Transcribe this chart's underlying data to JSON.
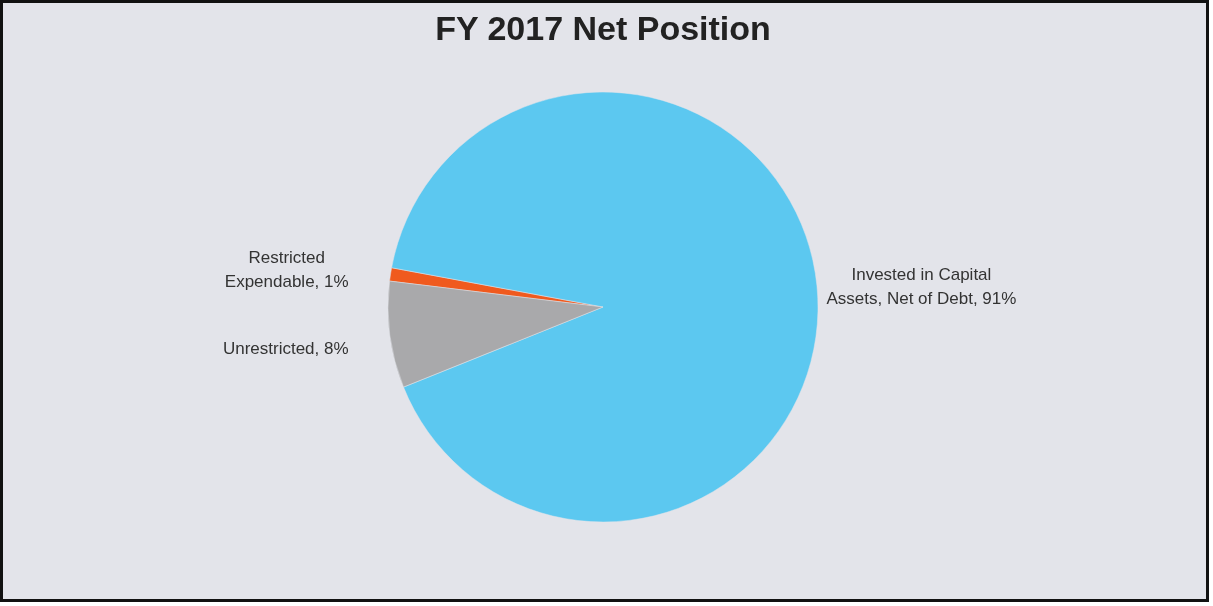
{
  "chart_data": {
    "type": "pie",
    "title": "FY 2017 Net Position",
    "categories": [
      "Restricted Expendable",
      "Invested in Capital Assets, Net of Debt",
      "Unrestricted"
    ],
    "values": [
      1,
      91,
      8
    ],
    "value_labels": [
      "1%",
      "91%",
      "8%"
    ],
    "colors": [
      "#f05a1e",
      "#5cc8f0",
      "#a9a9ab"
    ],
    "legend": false
  }
}
